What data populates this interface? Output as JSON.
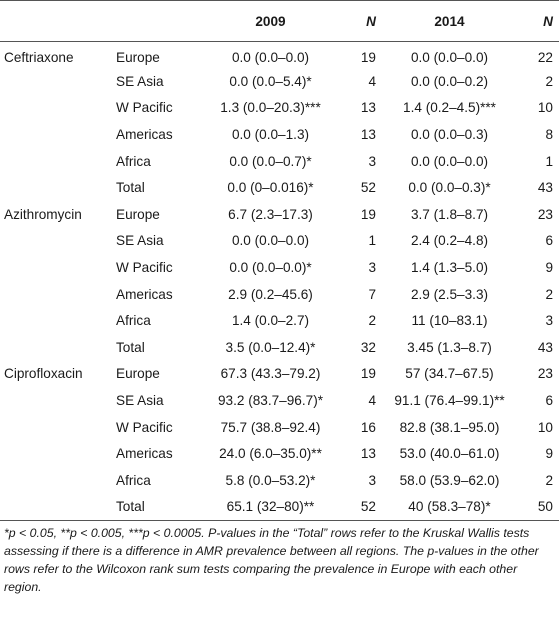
{
  "headers": {
    "year1": "2009",
    "n1": "N",
    "year2": "2014",
    "n2": "N"
  },
  "groups": [
    {
      "drug": "Ceftriaxone",
      "rows": [
        {
          "region": "Europe",
          "v2009": "0.0 (0.0–0.0)",
          "n2009": "19",
          "v2014": "0.0 (0.0–0.0)",
          "n2014": "22"
        },
        {
          "region": "SE Asia",
          "v2009": "0.0 (0.0–5.4)*",
          "n2009": "4",
          "v2014": "0.0 (0.0–0.2)",
          "n2014": "2"
        },
        {
          "region": "W Pacific",
          "v2009": "1.3 (0.0–20.3)***",
          "n2009": "13",
          "v2014": "1.4 (0.2–4.5)***",
          "n2014": "10"
        },
        {
          "region": "Americas",
          "v2009": "0.0 (0.0–1.3)",
          "n2009": "13",
          "v2014": "0.0 (0.0–0.3)",
          "n2014": "8"
        },
        {
          "region": "Africa",
          "v2009": "0.0 (0.0–0.7)*",
          "n2009": "3",
          "v2014": "0.0 (0.0–0.0)",
          "n2014": "1"
        },
        {
          "region": "Total",
          "v2009": "0.0 (0–0.016)*",
          "n2009": "52",
          "v2014": "0.0 (0.0–0.3)*",
          "n2014": "43"
        }
      ]
    },
    {
      "drug": "Azithromycin",
      "rows": [
        {
          "region": "Europe",
          "v2009": "6.7 (2.3–17.3)",
          "n2009": "19",
          "v2014": "3.7 (1.8–8.7)",
          "n2014": "23"
        },
        {
          "region": "SE Asia",
          "v2009": "0.0 (0.0–0.0)",
          "n2009": "1",
          "v2014": "2.4 (0.2–4.8)",
          "n2014": "6"
        },
        {
          "region": "W Pacific",
          "v2009": "0.0 (0.0–0.0)*",
          "n2009": "3",
          "v2014": "1.4 (1.3–5.0)",
          "n2014": "9"
        },
        {
          "region": "Americas",
          "v2009": "2.9 (0.2–45.6)",
          "n2009": "7",
          "v2014": "2.9 (2.5–3.3)",
          "n2014": "2"
        },
        {
          "region": "Africa",
          "v2009": "1.4 (0.0–2.7)",
          "n2009": "2",
          "v2014": "11 (10–83.1)",
          "n2014": "3"
        },
        {
          "region": "Total",
          "v2009": "3.5 (0.0–12.4)*",
          "n2009": "32",
          "v2014": "3.45 (1.3–8.7)",
          "n2014": "43"
        }
      ]
    },
    {
      "drug": "Ciprofloxacin",
      "rows": [
        {
          "region": "Europe",
          "v2009": "67.3 (43.3–79.2)",
          "n2009": "19",
          "v2014": "57 (34.7–67.5)",
          "n2014": "23"
        },
        {
          "region": "SE Asia",
          "v2009": "93.2 (83.7–96.7)*",
          "n2009": "4",
          "v2014": "91.1 (76.4–99.1)**",
          "n2014": "6"
        },
        {
          "region": "W Pacific",
          "v2009": "75.7 (38.8–92.4)",
          "n2009": "16",
          "v2014": "82.8 (38.1–95.0)",
          "n2014": "10"
        },
        {
          "region": "Americas",
          "v2009": "24.0 (6.0–35.0)**",
          "n2009": "13",
          "v2014": "53.0 (40.0–61.0)",
          "n2014": "9"
        },
        {
          "region": "Africa",
          "v2009": "5.8 (0.0–53.2)*",
          "n2009": "3",
          "v2014": "58.0 (53.9–62.0)",
          "n2014": "2"
        },
        {
          "region": "Total",
          "v2009": "65.1 (32–80)**",
          "n2009": "52",
          "v2014": "40 (58.3–78)*",
          "n2014": "50"
        }
      ]
    }
  ],
  "footnote": "*p < 0.05, **p < 0.005, ***p < 0.0005. P-values in the “Total” rows refer to the Kruskal Wallis tests assessing if there is a difference in AMR prevalence between all regions. The p-values in the other rows refer to the Wilcoxon rank sum tests comparing the prevalence in Europe with each other region."
}
